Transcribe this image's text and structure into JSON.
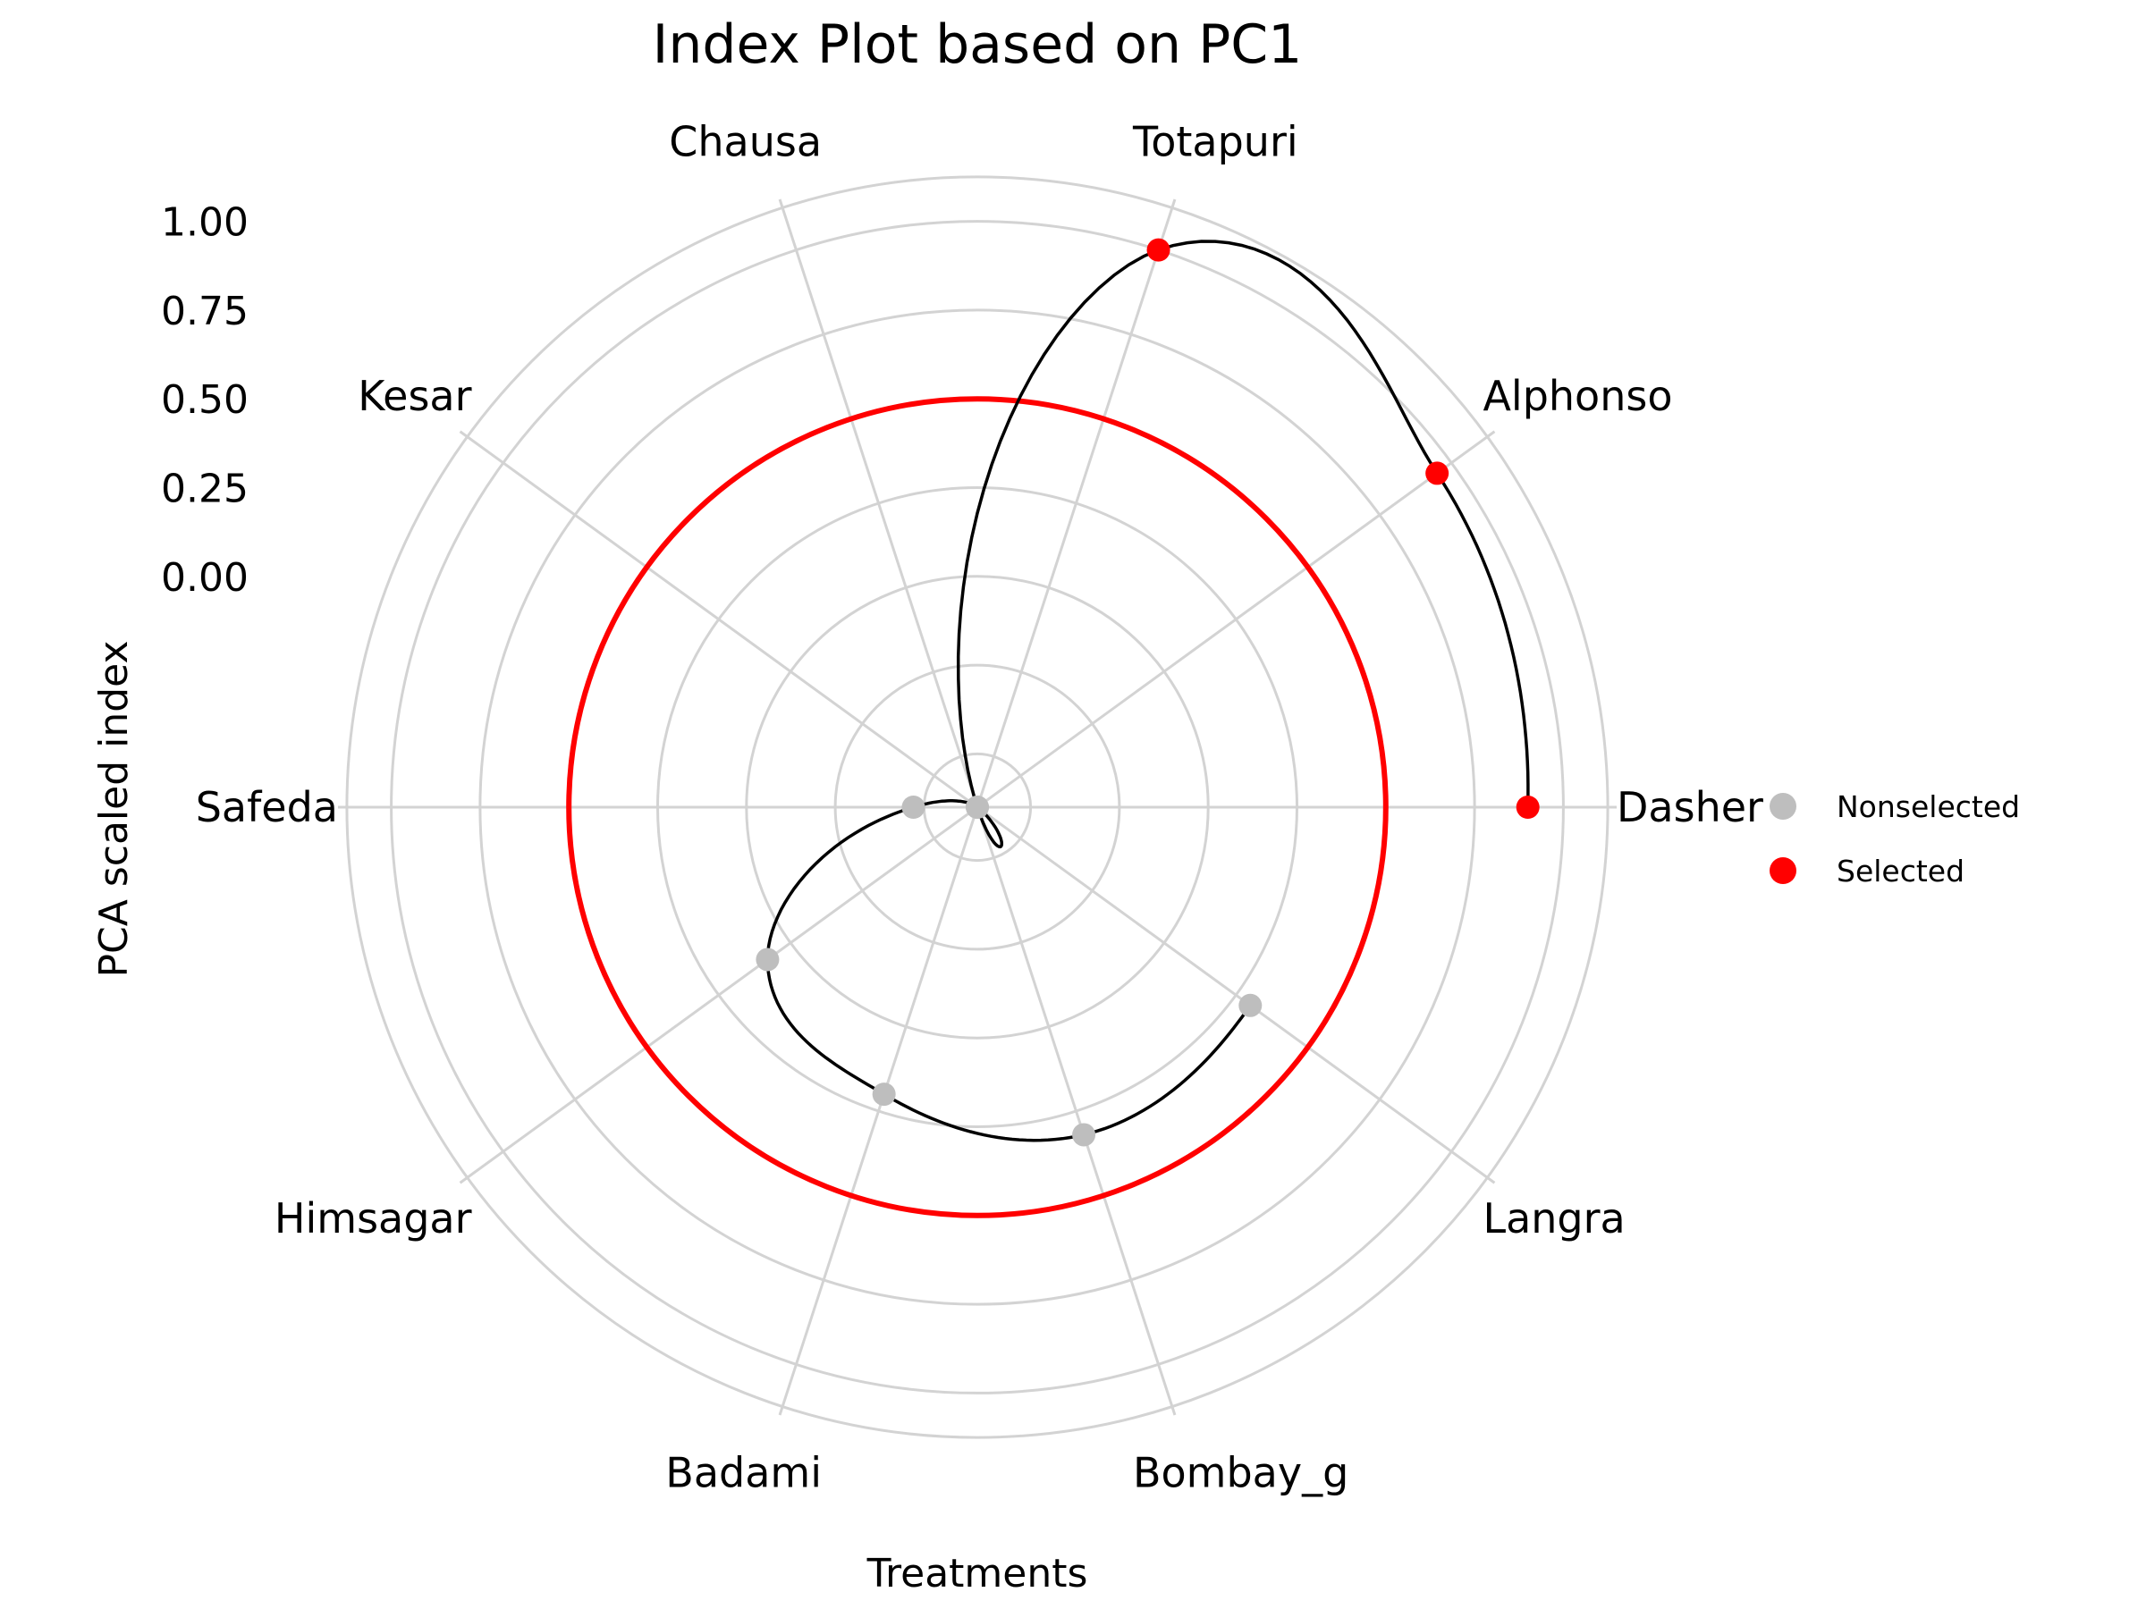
{
  "chart_data": {
    "type": "scatter",
    "subtype": "polar",
    "title": "Index Plot based on PC1",
    "xlabel": "Treatments",
    "ylabel": "PCA scaled index",
    "ylim": [
      -0.65,
      1.15
    ],
    "y_ticks": [
      "0.00",
      "0.25",
      "0.50",
      "0.75",
      "1.00"
    ],
    "y_tick_values": [
      0,
      0.25,
      0.5,
      0.75,
      1.0
    ],
    "grid_values": [
      -0.5,
      -0.25,
      0,
      0.25,
      0.5,
      0.75,
      1.0,
      1.125
    ],
    "threshold": 0.5,
    "threshold_color": "#ff0000",
    "curve_color": "#000000",
    "grid_color": "#d3d3d3",
    "categories": [
      "Dasher",
      "Alphonso",
      "Totapuri",
      "Chausa",
      "Kesar",
      "Safeda",
      "Himsagar",
      "Badami",
      "Bombay_g",
      "Langra"
    ],
    "values": [
      0.9,
      0.95,
      1.0,
      -0.65,
      -0.65,
      -0.47,
      0.08,
      0.2,
      0.32,
      0.3
    ],
    "status": [
      "Selected",
      "Selected",
      "Selected",
      "Nonselected",
      "Nonselected",
      "Nonselected",
      "Nonselected",
      "Nonselected",
      "Nonselected",
      "Nonselected"
    ],
    "legend": {
      "placement": "right",
      "items": [
        {
          "label": "Nonselected",
          "color": "#bebebe"
        },
        {
          "label": "Selected",
          "color": "#ff0000"
        }
      ]
    }
  }
}
